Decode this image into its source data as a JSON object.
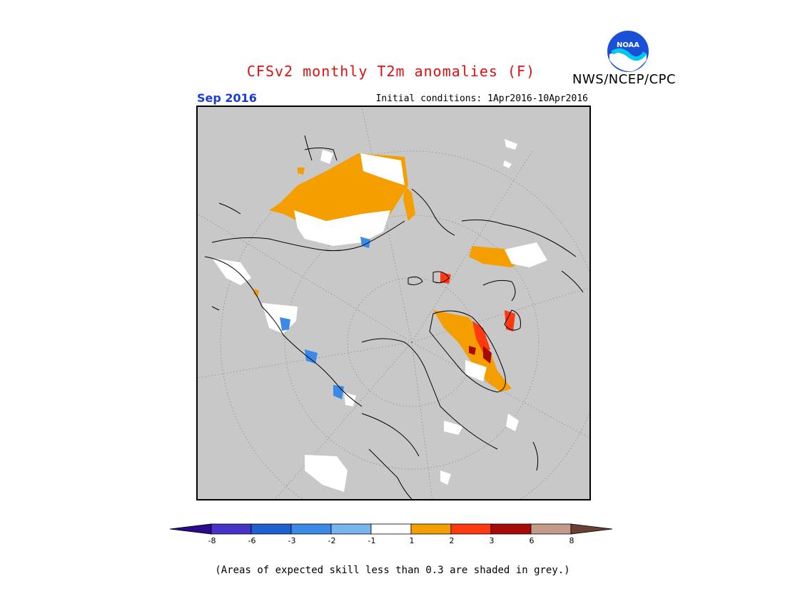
{
  "header": {
    "title": "CFSv2 monthly T2m anomalies (F)",
    "agency": "NWS/NCEP/CPC",
    "logo_text": "NOAA",
    "period": "Sep 2016",
    "initial_conditions": "Initial conditions: 1Apr2016-10Apr2016"
  },
  "legend": {
    "colors": [
      "#2a0c8a",
      "#4634c8",
      "#1f5fd0",
      "#3b8ae8",
      "#78b4ee",
      "#ffffff",
      "#f59e00",
      "#ff3a10",
      "#a80a0a",
      "#c49a8a",
      "#6a4034"
    ],
    "tick_labels": [
      "-8",
      "-6",
      "-3",
      "-2",
      "-1",
      "1",
      "2",
      "3",
      "6",
      "8"
    ]
  },
  "footnote": "(Areas of expected skill less than 0.3 are shaded in grey.)"
}
